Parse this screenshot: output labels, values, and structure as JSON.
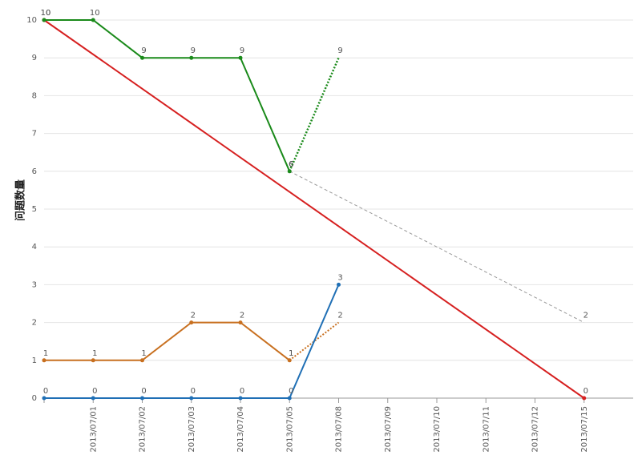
{
  "chart_data": {
    "type": "line",
    "y_label": "问题数量",
    "categories": [
      null,
      "2013/07/01",
      "2013/07/02",
      "2013/07/03",
      "2013/07/04",
      "2013/07/05",
      "2013/07/08",
      "2013/07/09",
      "2013/07/10",
      "2013/07/11",
      "2013/07/12",
      "2013/07/15"
    ],
    "ylim": [
      0,
      10
    ],
    "yticks": [
      0,
      1,
      2,
      3,
      4,
      5,
      6,
      7,
      8,
      9,
      10
    ],
    "grid": true,
    "series": [
      {
        "color": "#d62020",
        "style": "solid",
        "width": 2,
        "connect_nulls": true,
        "labels": true,
        "values": [
          10,
          null,
          null,
          null,
          null,
          null,
          null,
          null,
          null,
          null,
          null,
          0
        ]
      },
      {
        "color": "#999999",
        "style": "dashed",
        "width": 1,
        "connect_nulls": true,
        "labels": true,
        "markers": false,
        "values": [
          null,
          null,
          null,
          null,
          null,
          6,
          null,
          null,
          null,
          null,
          null,
          2
        ]
      },
      {
        "color": "#1a8a1a",
        "style": "solid",
        "width": 2,
        "labels": true,
        "values": [
          10,
          10,
          9,
          9,
          9,
          6,
          null,
          null,
          null,
          null,
          null,
          null
        ]
      },
      {
        "color": "#1a8a1a",
        "style": "dotted",
        "width": 2.5,
        "labels": true,
        "markers": false,
        "values": [
          null,
          null,
          null,
          null,
          null,
          6,
          9,
          null,
          null,
          null,
          null,
          null
        ]
      },
      {
        "color": "#c87020",
        "style": "solid",
        "width": 2,
        "labels": true,
        "values": [
          1,
          1,
          1,
          2,
          2,
          1,
          null,
          null,
          null,
          null,
          null,
          null
        ]
      },
      {
        "color": "#c87020",
        "style": "dotted",
        "width": 2,
        "labels": true,
        "markers": false,
        "values": [
          null,
          null,
          null,
          null,
          null,
          1,
          2,
          null,
          null,
          null,
          null,
          null
        ]
      },
      {
        "color": "#1f6fb5",
        "style": "solid",
        "width": 2,
        "labels": true,
        "values": [
          0,
          0,
          0,
          0,
          0,
          0,
          3,
          null,
          null,
          null,
          null,
          null
        ]
      }
    ]
  }
}
